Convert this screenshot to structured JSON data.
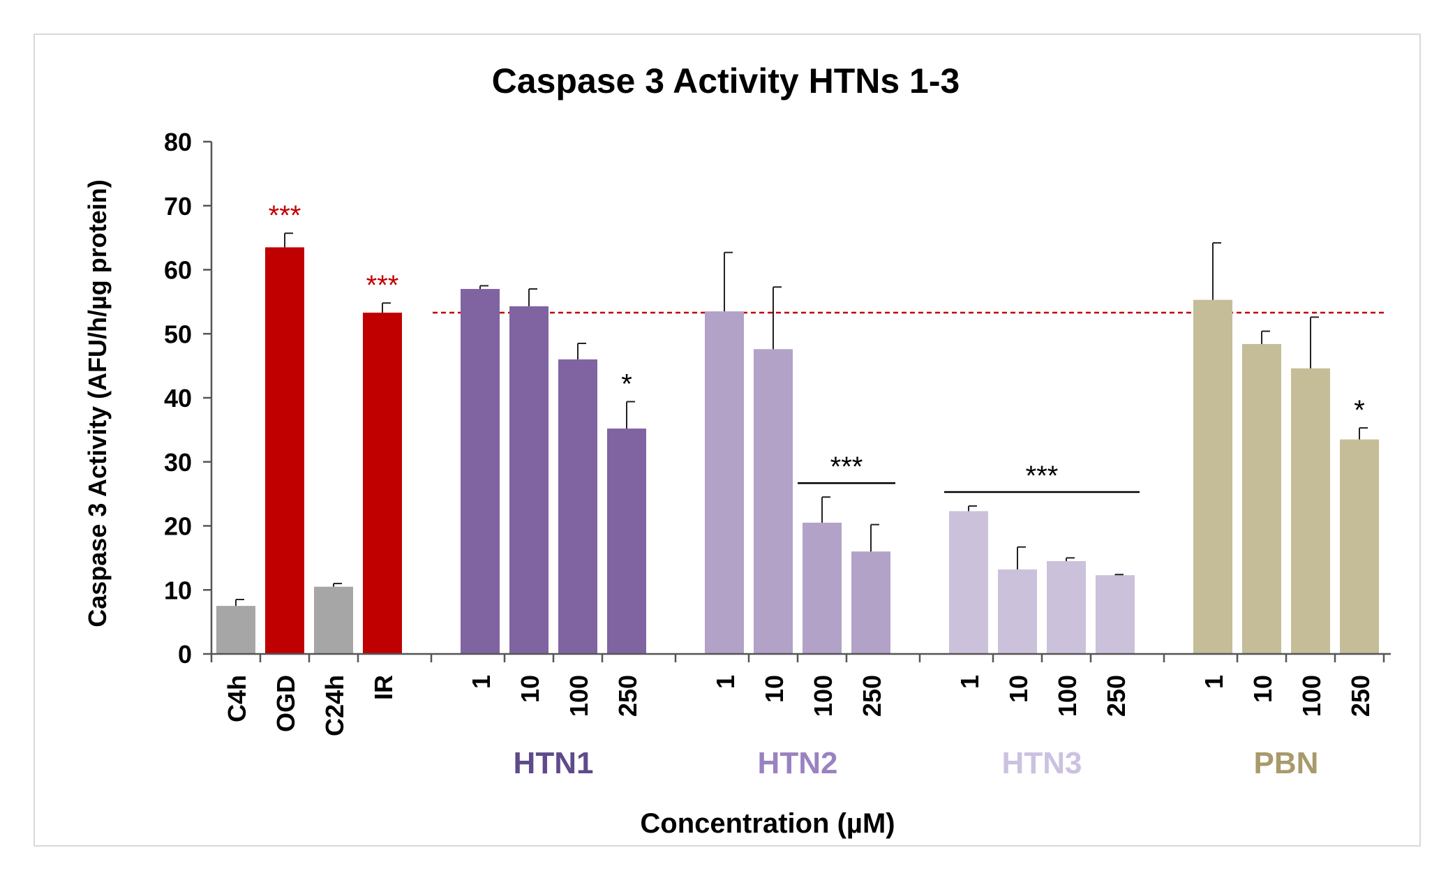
{
  "chart_data": {
    "type": "bar",
    "title": "Caspase 3 Activity HTNs 1-3",
    "xlabel": "Concentration (µM)",
    "ylabel": "Caspase 3 Activity (AFU/h/µg protein)",
    "ylim": [
      0,
      80
    ],
    "yticks": [
      0,
      10,
      20,
      30,
      40,
      50,
      60,
      70,
      80
    ],
    "grid": false,
    "reference_line": {
      "value": 53.3,
      "style": "dashed",
      "color": "#c00000"
    },
    "groups": [
      {
        "name": "",
        "label_color": "#000000",
        "bars": [
          {
            "label": "C4h",
            "value": 7.5,
            "error": 1.0,
            "color": "#a6a6a6"
          },
          {
            "label": "OGD",
            "value": 63.5,
            "error": 2.2,
            "color": "#c00000",
            "significance": "***",
            "sig_color": "#c00000"
          },
          {
            "label": "C24h",
            "value": 10.5,
            "error": 0.5,
            "color": "#a6a6a6"
          },
          {
            "label": "IR",
            "value": 53.3,
            "error": 1.5,
            "color": "#c00000",
            "significance": "***",
            "sig_color": "#c00000"
          }
        ]
      },
      {
        "name": "HTN1",
        "label_color": "#5f4b8b",
        "bars": [
          {
            "label": "1",
            "value": 57.0,
            "error": 0.5,
            "color": "#8064a2"
          },
          {
            "label": "10",
            "value": 54.3,
            "error": 2.7,
            "color": "#8064a2"
          },
          {
            "label": "100",
            "value": 46.0,
            "error": 2.5,
            "color": "#8064a2"
          },
          {
            "label": "250",
            "value": 35.2,
            "error": 4.2,
            "color": "#8064a2",
            "significance": "*",
            "sig_color": "#000000"
          }
        ]
      },
      {
        "name": "HTN2",
        "label_color": "#9a82c0",
        "bars": [
          {
            "label": "1",
            "value": 53.5,
            "error": 9.2,
            "color": "#b2a2c7"
          },
          {
            "label": "10",
            "value": 47.6,
            "error": 9.7,
            "color": "#b2a2c7"
          },
          {
            "label": "100",
            "value": 20.5,
            "error": 4.0,
            "color": "#b2a2c7"
          },
          {
            "label": "250",
            "value": 16.0,
            "error": 4.2,
            "color": "#b2a2c7"
          }
        ],
        "bracket": {
          "from": 2,
          "to": 3,
          "significance": "***"
        }
      },
      {
        "name": "HTN3",
        "label_color": "#ccc1e0",
        "bars": [
          {
            "label": "1",
            "value": 22.3,
            "error": 0.8,
            "color": "#ccc1da"
          },
          {
            "label": "10",
            "value": 13.2,
            "error": 3.5,
            "color": "#ccc1da"
          },
          {
            "label": "100",
            "value": 14.5,
            "error": 0.5,
            "color": "#ccc1da"
          },
          {
            "label": "250",
            "value": 12.3,
            "error": 0.1,
            "color": "#ccc1da"
          }
        ],
        "bracket": {
          "from": 0,
          "to": 3,
          "significance": "***"
        }
      },
      {
        "name": "PBN",
        "label_color": "#a89a6a",
        "bars": [
          {
            "label": "1",
            "value": 55.3,
            "error": 8.9,
            "color": "#c4bd97"
          },
          {
            "label": "10",
            "value": 48.4,
            "error": 2.0,
            "color": "#c4bd97"
          },
          {
            "label": "100",
            "value": 44.6,
            "error": 8.0,
            "color": "#c4bd97"
          },
          {
            "label": "250",
            "value": 33.5,
            "error": 1.8,
            "color": "#c4bd97",
            "significance": "*",
            "sig_color": "#000000"
          }
        ]
      }
    ]
  }
}
